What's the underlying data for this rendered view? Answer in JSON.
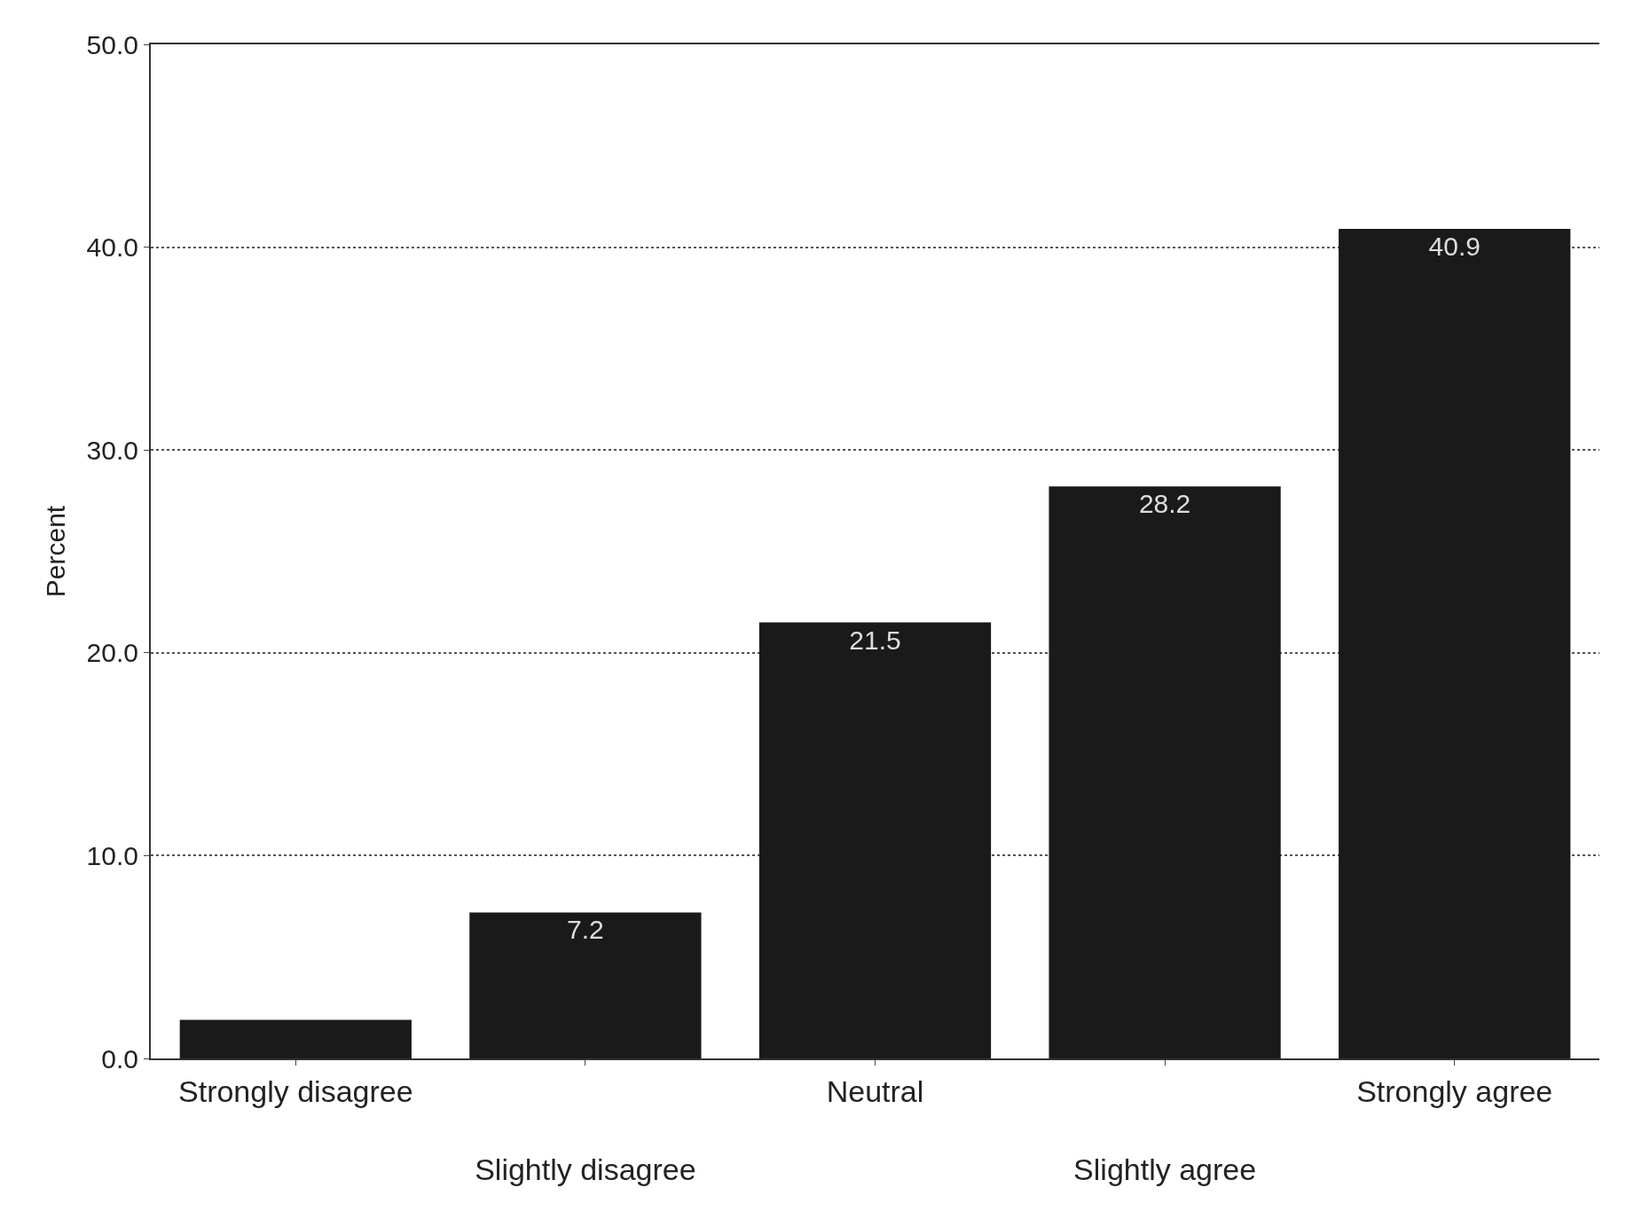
{
  "chart_data": {
    "type": "bar",
    "ylabel": "Percent",
    "categories": [
      "Strongly disagree",
      "Slightly disagree",
      "Neutral",
      "Slightly agree",
      "Strongly agree"
    ],
    "values": [
      1.9,
      7.2,
      21.5,
      28.2,
      40.9
    ],
    "value_labels": [
      null,
      "7.2",
      "21.5",
      "28.2",
      "40.9"
    ],
    "color": "#1a1a1a",
    "ylim": [
      0,
      50
    ],
    "yticks": [
      {
        "value": 0,
        "label": "0.0"
      },
      {
        "value": 10,
        "label": "10.0"
      },
      {
        "value": 20,
        "label": "20.0"
      },
      {
        "value": 30,
        "label": "30.0"
      },
      {
        "value": 40,
        "label": "40.0"
      },
      {
        "value": 50,
        "label": "50.0"
      }
    ],
    "grid": "y"
  }
}
